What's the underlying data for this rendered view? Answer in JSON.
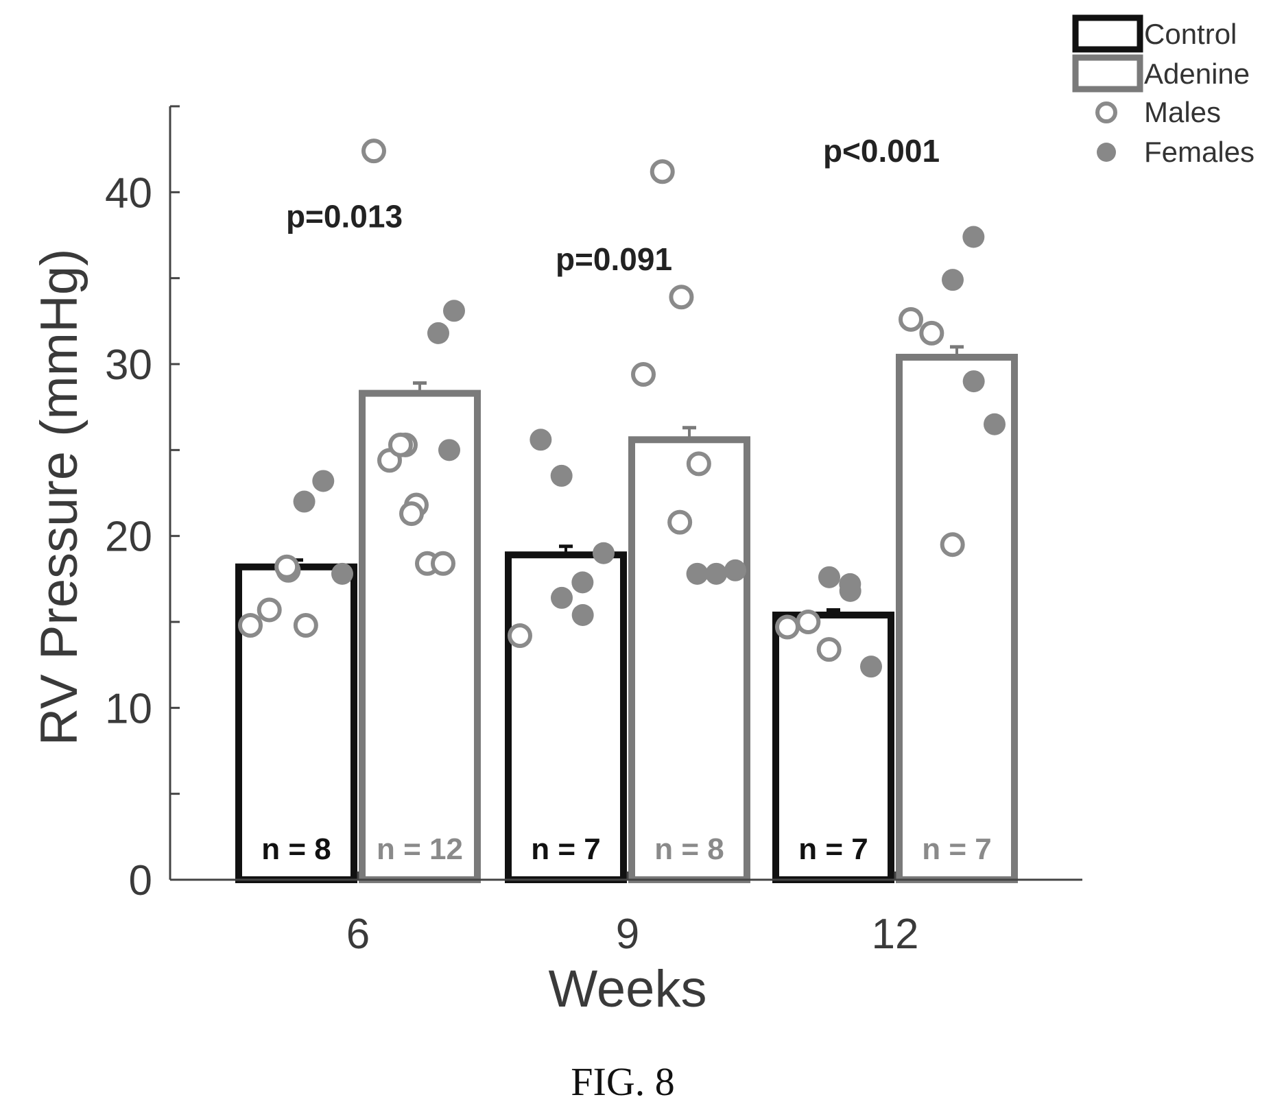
{
  "figure_caption": "FIG. 8",
  "chart_data": {
    "type": "bar",
    "xlabel": "Weeks",
    "ylabel": "RV Pressure (mmHg)",
    "ylim": [
      0,
      45
    ],
    "yticks": [
      0,
      10,
      20,
      30,
      40
    ],
    "categories": [
      "6",
      "9",
      "12"
    ],
    "legend_position": "top-right",
    "legend": {
      "control": "Control",
      "adenine": "Adenine",
      "males": "Males",
      "females": "Females"
    },
    "colors": {
      "control": "#111111",
      "adenine": "#7a7a7a",
      "male_points": "#8a8a8a",
      "female_points": "#888888"
    },
    "series": [
      {
        "name": "Control",
        "values": [
          18.2,
          18.9,
          15.4
        ],
        "errors": [
          0.4,
          0.5,
          0.3
        ],
        "n_labels": [
          "n = 8",
          "n = 7",
          "n = 7"
        ],
        "males": [
          [
            14.8,
            15.7,
            18.0,
            18.2,
            14.8
          ],
          [
            14.2
          ],
          [
            14.7,
            15.0,
            13.4
          ]
        ],
        "females": [
          [
            22.0,
            23.2,
            17.8
          ],
          [
            25.6,
            23.5,
            16.4,
            17.3,
            15.4,
            19.0
          ],
          [
            17.6,
            17.2,
            16.8,
            12.4
          ]
        ]
      },
      {
        "name": "Adenine",
        "values": [
          28.3,
          25.6,
          30.4
        ],
        "errors": [
          0.6,
          0.7,
          0.6
        ],
        "n_labels": [
          "n = 12",
          "n = 8",
          "n = 7"
        ],
        "males": [
          [
            42.4,
            24.4,
            25.3,
            25.3,
            21.8,
            21.3,
            18.4,
            18.4
          ],
          [
            29.4,
            41.2,
            33.9,
            20.8,
            24.2
          ],
          [
            32.6,
            31.8,
            19.5
          ]
        ],
        "females": [
          [
            31.8,
            33.1,
            25.0
          ],
          [
            17.8,
            17.8,
            18.0
          ],
          [
            34.9,
            37.4,
            29.0,
            26.5
          ]
        ]
      }
    ],
    "annotations": [
      {
        "category": "6",
        "text": "p=0.013",
        "y": 38.6
      },
      {
        "category": "9",
        "text": "p=0.091",
        "y": 36.1
      },
      {
        "category": "12",
        "text": "p<0.001",
        "y": 42.4
      }
    ]
  }
}
